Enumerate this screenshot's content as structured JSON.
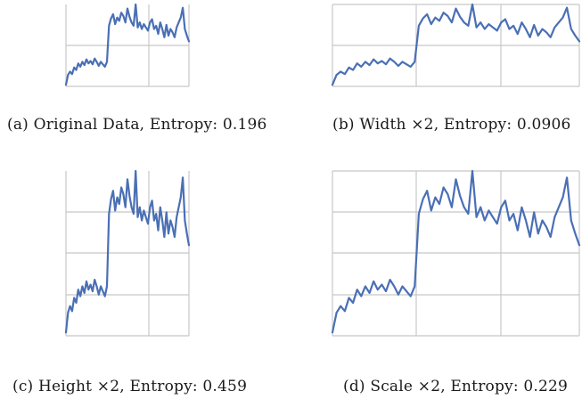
{
  "colors": {
    "line": "#4a6fb5",
    "grid": "#c8c8c8"
  },
  "chart_data": [
    {
      "type": "line",
      "caption": "(a) Original Data, Entropy: 0.196",
      "grid": true,
      "xlim": [
        0,
        60
      ],
      "ylim": [
        0,
        1
      ],
      "x": [
        0,
        1,
        2,
        3,
        4,
        5,
        6,
        7,
        8,
        9,
        10,
        11,
        12,
        13,
        14,
        15,
        16,
        17,
        18,
        19,
        20,
        21,
        22,
        23,
        24,
        25,
        26,
        27,
        28,
        29,
        30,
        31,
        32,
        33,
        34,
        35,
        36,
        37,
        38,
        39,
        40,
        41,
        42,
        43,
        44,
        45,
        46,
        47,
        48,
        49,
        50,
        51,
        52,
        53,
        54,
        55,
        56,
        57,
        58,
        59,
        60
      ],
      "y": [
        0.02,
        0.14,
        0.18,
        0.15,
        0.23,
        0.2,
        0.28,
        0.24,
        0.3,
        0.26,
        0.33,
        0.28,
        0.31,
        0.27,
        0.34,
        0.3,
        0.25,
        0.3,
        0.27,
        0.24,
        0.3,
        0.74,
        0.83,
        0.88,
        0.76,
        0.84,
        0.8,
        0.9,
        0.86,
        0.78,
        0.95,
        0.85,
        0.78,
        0.74,
        1.0,
        0.72,
        0.78,
        0.7,
        0.76,
        0.72,
        0.68,
        0.78,
        0.82,
        0.7,
        0.74,
        0.64,
        0.78,
        0.7,
        0.6,
        0.75,
        0.62,
        0.7,
        0.66,
        0.6,
        0.72,
        0.78,
        0.84,
        0.96,
        0.7,
        0.62,
        0.55
      ]
    },
    {
      "type": "line",
      "caption": "(b) Width ×2, Entropy: 0.0906",
      "grid": true,
      "xlim": [
        0,
        120
      ],
      "ylim": [
        0,
        1
      ],
      "x": [
        0,
        2,
        4,
        6,
        8,
        10,
        12,
        14,
        16,
        18,
        20,
        22,
        24,
        26,
        28,
        30,
        32,
        34,
        36,
        38,
        40,
        42,
        44,
        46,
        48,
        50,
        52,
        54,
        56,
        58,
        60,
        62,
        64,
        66,
        68,
        70,
        72,
        74,
        76,
        78,
        80,
        82,
        84,
        86,
        88,
        90,
        92,
        94,
        96,
        98,
        100,
        102,
        104,
        106,
        108,
        110,
        112,
        114,
        116,
        118,
        120
      ],
      "y": [
        0.02,
        0.14,
        0.18,
        0.15,
        0.23,
        0.2,
        0.28,
        0.24,
        0.3,
        0.26,
        0.33,
        0.28,
        0.31,
        0.27,
        0.34,
        0.3,
        0.25,
        0.3,
        0.27,
        0.24,
        0.3,
        0.74,
        0.83,
        0.88,
        0.76,
        0.84,
        0.8,
        0.9,
        0.86,
        0.78,
        0.95,
        0.85,
        0.78,
        0.74,
        1.0,
        0.72,
        0.78,
        0.7,
        0.76,
        0.72,
        0.68,
        0.78,
        0.82,
        0.7,
        0.74,
        0.64,
        0.78,
        0.7,
        0.6,
        0.75,
        0.62,
        0.7,
        0.66,
        0.6,
        0.72,
        0.78,
        0.84,
        0.96,
        0.7,
        0.62,
        0.55
      ]
    },
    {
      "type": "line",
      "caption": "(c) Height ×2, Entropy: 0.459",
      "grid": true,
      "xlim": [
        0,
        60
      ],
      "ylim": [
        0,
        2
      ],
      "x": [
        0,
        1,
        2,
        3,
        4,
        5,
        6,
        7,
        8,
        9,
        10,
        11,
        12,
        13,
        14,
        15,
        16,
        17,
        18,
        19,
        20,
        21,
        22,
        23,
        24,
        25,
        26,
        27,
        28,
        29,
        30,
        31,
        32,
        33,
        34,
        35,
        36,
        37,
        38,
        39,
        40,
        41,
        42,
        43,
        44,
        45,
        46,
        47,
        48,
        49,
        50,
        51,
        52,
        53,
        54,
        55,
        56,
        57,
        58,
        59,
        60
      ],
      "y": [
        0.04,
        0.28,
        0.36,
        0.3,
        0.46,
        0.4,
        0.56,
        0.48,
        0.6,
        0.52,
        0.66,
        0.56,
        0.62,
        0.54,
        0.68,
        0.6,
        0.5,
        0.6,
        0.54,
        0.48,
        0.6,
        1.48,
        1.66,
        1.76,
        1.52,
        1.68,
        1.6,
        1.8,
        1.72,
        1.56,
        1.9,
        1.7,
        1.56,
        1.48,
        2.0,
        1.44,
        1.56,
        1.4,
        1.52,
        1.44,
        1.36,
        1.56,
        1.64,
        1.4,
        1.48,
        1.28,
        1.56,
        1.4,
        1.2,
        1.5,
        1.24,
        1.4,
        1.32,
        1.2,
        1.44,
        1.56,
        1.68,
        1.92,
        1.4,
        1.24,
        1.1
      ]
    },
    {
      "type": "line",
      "caption": "(d) Scale ×2, Entropy: 0.229",
      "grid": true,
      "xlim": [
        0,
        120
      ],
      "ylim": [
        0,
        2
      ],
      "x": [
        0,
        2,
        4,
        6,
        8,
        10,
        12,
        14,
        16,
        18,
        20,
        22,
        24,
        26,
        28,
        30,
        32,
        34,
        36,
        38,
        40,
        42,
        44,
        46,
        48,
        50,
        52,
        54,
        56,
        58,
        60,
        62,
        64,
        66,
        68,
        70,
        72,
        74,
        76,
        78,
        80,
        82,
        84,
        86,
        88,
        90,
        92,
        94,
        96,
        98,
        100,
        102,
        104,
        106,
        108,
        110,
        112,
        114,
        116,
        118,
        120
      ],
      "y": [
        0.04,
        0.28,
        0.36,
        0.3,
        0.46,
        0.4,
        0.56,
        0.48,
        0.6,
        0.52,
        0.66,
        0.56,
        0.62,
        0.54,
        0.68,
        0.6,
        0.5,
        0.6,
        0.54,
        0.48,
        0.6,
        1.48,
        1.66,
        1.76,
        1.52,
        1.68,
        1.6,
        1.8,
        1.72,
        1.56,
        1.9,
        1.7,
        1.56,
        1.48,
        2.0,
        1.44,
        1.56,
        1.4,
        1.52,
        1.44,
        1.36,
        1.56,
        1.64,
        1.4,
        1.48,
        1.28,
        1.56,
        1.4,
        1.2,
        1.5,
        1.24,
        1.4,
        1.32,
        1.2,
        1.44,
        1.56,
        1.68,
        1.92,
        1.4,
        1.24,
        1.1
      ]
    }
  ]
}
